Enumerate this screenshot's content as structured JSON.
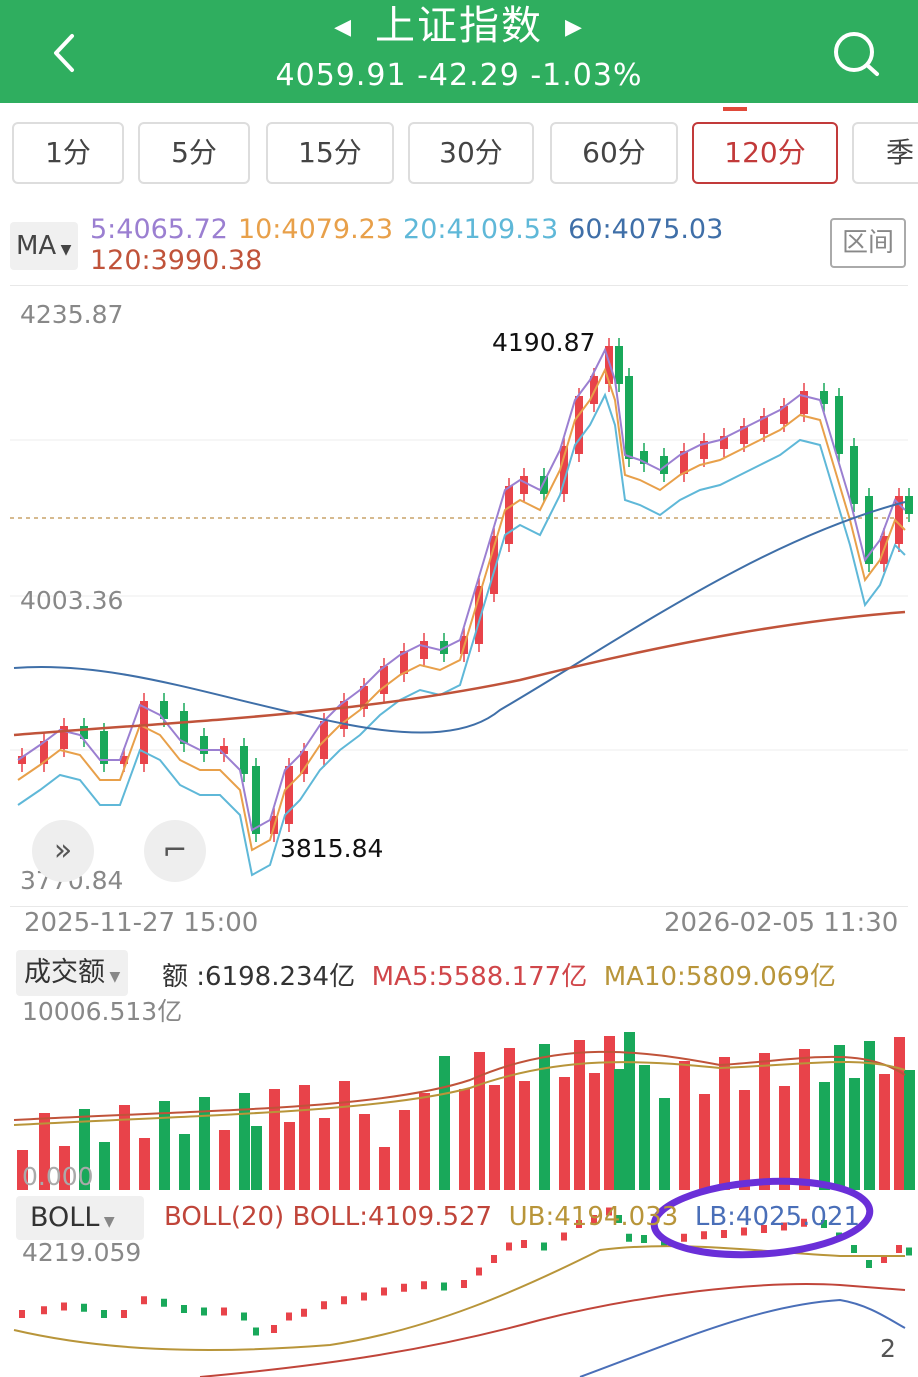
{
  "header": {
    "title": "上证指数",
    "quote": "4059.91  -42.29  -1.03%",
    "bg": "#2fae5f"
  },
  "tabs": [
    {
      "label": "1分"
    },
    {
      "label": "5分"
    },
    {
      "label": "15分"
    },
    {
      "label": "30分"
    },
    {
      "label": "60分"
    },
    {
      "label": "120分",
      "active": true
    },
    {
      "label": "季"
    }
  ],
  "ma": {
    "selector": "MA",
    "values": [
      {
        "label": "5:4065.72",
        "color": "#9b7fd1"
      },
      {
        "label": "10:4079.23",
        "color": "#e8a04a"
      },
      {
        "label": "20:4109.53",
        "color": "#5fb8d8"
      },
      {
        "label": "60:4075.03",
        "color": "#3f6fa8"
      },
      {
        "label": "120:3990.38",
        "color": "#c0533a"
      }
    ],
    "range_button": "区间"
  },
  "price_chart": {
    "axis_top": "4235.87",
    "axis_mid": "4003.36",
    "axis_bottom": "3770.84",
    "high_label": "4190.87",
    "low_label": "3815.84",
    "date_start": "2025-11-27  15:00",
    "date_end": "2026-02-05  11:30",
    "ylim": [
      3770.84,
      4235.87
    ],
    "up_color": "#e8434a",
    "down_color": "#19a85a"
  },
  "volume": {
    "selector": "成交额",
    "amount": "额 :6198.234亿",
    "ma5": "MA5:5588.177亿",
    "ma10": "MA10:5809.069亿",
    "axis_top": "10006.513亿",
    "axis_bottom": "0.000"
  },
  "boll": {
    "selector": "BOLL",
    "title": "BOLL(20) BOLL:4109.527",
    "ub": "UB:4194.033",
    "lb": "LB:4025.021",
    "axis_top": "4219.059",
    "right_tag": "2"
  }
}
